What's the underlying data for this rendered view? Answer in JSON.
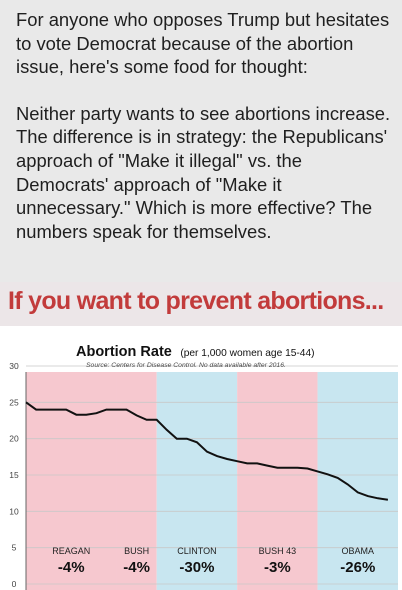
{
  "post": {
    "paragraph1": "For anyone who opposes Trump but hesitates to vote Democrat because of the abortion issue, here's some food for thought:",
    "paragraph2": "Neither party wants to see abortions increase. The difference is in strategy: the Republicans' approach of \"Make it illegal\" vs. the Democrats' approach of \"Make it unnecessary.\" Which is more effective? The numbers speak for themselves."
  },
  "banner": {
    "text": "If you want to prevent abortions..."
  },
  "chart_data": {
    "type": "line",
    "title": "Abortion Rate",
    "title_suffix": "(per 1,000 women age 15-44)",
    "source": "Source: Centers for Disease Control. No data available after 2016.",
    "ylim": [
      0,
      30
    ],
    "ytick_labels": [
      "0",
      "5",
      "10",
      "15",
      "20",
      "25",
      "30"
    ],
    "ytick_values": [
      0,
      5,
      10,
      15,
      20,
      25,
      30
    ],
    "xlim": [
      1980,
      2017
    ],
    "grid": true,
    "colors": {
      "republican": "#f6c8cf",
      "democrat": "#c8e6f0",
      "line": "#111111",
      "grid": "#c8c8c8",
      "source": "#4a4a4a"
    },
    "presidencies": [
      {
        "name": "REAGAN",
        "change": "-4%",
        "party": "republican",
        "start": 1980,
        "end": 1989
      },
      {
        "name": "BUSH",
        "change": "-4%",
        "party": "republican",
        "start": 1989,
        "end": 1993
      },
      {
        "name": "CLINTON",
        "change": "-30%",
        "party": "democrat",
        "start": 1993,
        "end": 2001
      },
      {
        "name": "BUSH 43",
        "change": "-3%",
        "party": "republican",
        "start": 2001,
        "end": 2009
      },
      {
        "name": "OBAMA",
        "change": "-26%",
        "party": "democrat",
        "start": 2009,
        "end": 2017
      }
    ],
    "series": [
      {
        "x": [
          1980,
          1981,
          1982,
          1983,
          1984,
          1985,
          1986,
          1987,
          1988,
          1989,
          1990,
          1991,
          1992,
          1993,
          1994,
          1995,
          1996,
          1997,
          1998,
          1999,
          2000,
          2001,
          2002,
          2003,
          2004,
          2005,
          2006,
          2007,
          2008,
          2009,
          2010,
          2011,
          2012,
          2013,
          2014,
          2015,
          2016
        ],
        "y": [
          25,
          24,
          24,
          24,
          24,
          23.3,
          23.3,
          23.5,
          24,
          24,
          24,
          23.2,
          22.6,
          22.6,
          21.2,
          20,
          20,
          19.5,
          18.2,
          17.6,
          17.2,
          16.9,
          16.6,
          16.6,
          16.3,
          16,
          16,
          16,
          15.9,
          15.5,
          15.1,
          14.6,
          13.7,
          12.6,
          12.1,
          11.8,
          11.6
        ]
      }
    ]
  }
}
